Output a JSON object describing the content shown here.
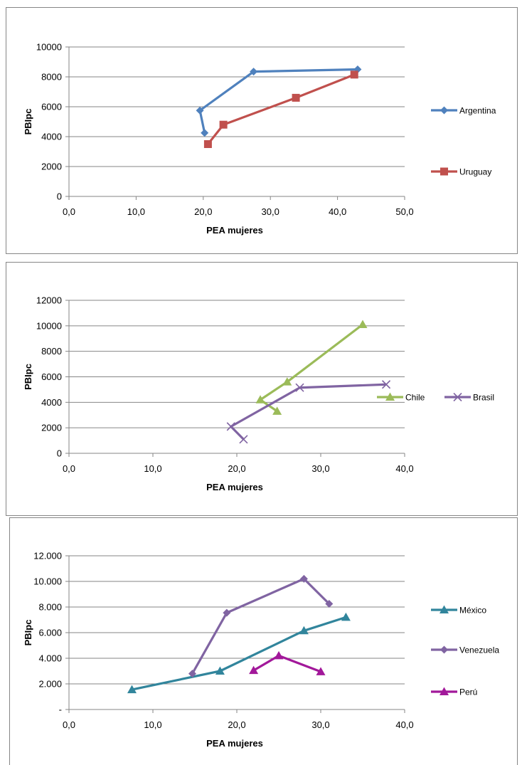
{
  "chart_data": [
    {
      "type": "line",
      "xlabel": "PEA mujeres",
      "ylabel": "PBIpc",
      "xlim": [
        0,
        50
      ],
      "ylim": [
        0,
        10000
      ],
      "x_ticks": [
        "0,0",
        "10,0",
        "20,0",
        "30,0",
        "40,0",
        "50,0"
      ],
      "y_ticks": [
        "0",
        "2000",
        "4000",
        "6000",
        "8000",
        "10000"
      ],
      "grid": "horizontal",
      "legend_position": "right",
      "series": [
        {
          "name": "Argentina",
          "color": "#4f81bd",
          "marker": "diamond",
          "points": [
            [
              20.2,
              4250
            ],
            [
              19.5,
              5750
            ],
            [
              27.5,
              8350
            ],
            [
              43.0,
              8500
            ]
          ]
        },
        {
          "name": "Uruguay",
          "color": "#c0504d",
          "marker": "square",
          "points": [
            [
              20.7,
              3500
            ],
            [
              23.0,
              4800
            ],
            [
              33.8,
              6600
            ],
            [
              42.5,
              8150
            ]
          ]
        }
      ]
    },
    {
      "type": "line",
      "xlabel": "PEA mujeres",
      "ylabel": "PBIpc",
      "xlim": [
        0,
        40
      ],
      "ylim": [
        0,
        12000
      ],
      "x_ticks": [
        "0,0",
        "10,0",
        "20,0",
        "30,0",
        "40,0"
      ],
      "y_ticks": [
        "0",
        "2000",
        "4000",
        "6000",
        "8000",
        "10000",
        "12000"
      ],
      "grid": "horizontal",
      "legend_position": "right",
      "series": [
        {
          "name": "Chile",
          "color": "#9bbb59",
          "marker": "triangle",
          "points": [
            [
              24.8,
              3300
            ],
            [
              22.8,
              4200
            ],
            [
              26.0,
              5600
            ],
            [
              35.0,
              10100
            ]
          ]
        },
        {
          "name": "Brasil",
          "color": "#8064a2",
          "marker": "x",
          "points": [
            [
              20.8,
              1100
            ],
            [
              19.3,
              2100
            ],
            [
              27.5,
              5150
            ],
            [
              37.8,
              5400
            ]
          ]
        }
      ]
    },
    {
      "type": "line",
      "xlabel": "PEA mujeres",
      "ylabel": "PBIpc",
      "xlim": [
        0,
        40
      ],
      "ylim": [
        0,
        12000
      ],
      "x_ticks": [
        "0,0",
        "10,0",
        "20,0",
        "30,0",
        "40,0"
      ],
      "y_ticks": [
        "-",
        "2.000",
        "4.000",
        "6.000",
        "8.000",
        "10.000",
        "12.000"
      ],
      "grid": "horizontal",
      "legend_position": "right",
      "series": [
        {
          "name": "México",
          "color": "#31859c",
          "marker": "triangle",
          "points": [
            [
              7.5,
              1550
            ],
            [
              18.0,
              3000
            ],
            [
              28.0,
              6150
            ],
            [
              33.0,
              7200
            ]
          ]
        },
        {
          "name": "Venezuela",
          "color": "#8064a2",
          "marker": "diamond",
          "points": [
            [
              14.7,
              2800
            ],
            [
              18.8,
              7550
            ],
            [
              28.0,
              10200
            ],
            [
              31.0,
              8250
            ]
          ]
        },
        {
          "name": "Perú",
          "color": "#a2189a",
          "marker": "triangle",
          "points": [
            [
              22.0,
              3050
            ],
            [
              25.0,
              4200
            ],
            [
              30.0,
              2950
            ]
          ]
        }
      ]
    }
  ]
}
